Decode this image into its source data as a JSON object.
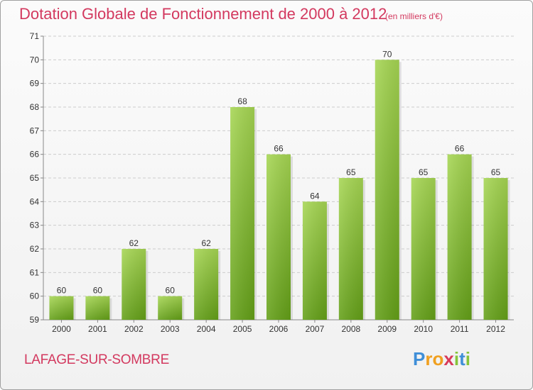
{
  "header": {
    "title": "Dotation Globale de Fonctionnement de 2000 à 2012",
    "subtitle": "(en milliers d'€)"
  },
  "footer": {
    "commune": "LAFAGE-SUR-SOMBRE",
    "logo_text": "Proxiti"
  },
  "colors": {
    "title": "#d3395f",
    "bar_top": "#a6d653",
    "bar_bottom": "#64a018",
    "grid": "#cccccc",
    "logo_p": "#3f8fd8",
    "logo_r": "#f0a020",
    "logo_o": "#f0a020",
    "logo_x": "#d83a5a",
    "logo_i": "#86c43a",
    "logo_t": "#3f8fd8"
  },
  "chart_data": {
    "type": "bar",
    "title": "Dotation Globale de Fonctionnement de 2000 à 2012",
    "subtitle": "(en milliers d'€)",
    "xlabel": "",
    "ylabel": "",
    "categories": [
      "2000",
      "2001",
      "2002",
      "2003",
      "2004",
      "2005",
      "2006",
      "2007",
      "2008",
      "2009",
      "2010",
      "2011",
      "2012"
    ],
    "values": [
      60,
      60,
      62,
      60,
      62,
      68,
      66,
      64,
      65,
      70,
      65,
      66,
      65
    ],
    "data_labels": [
      "60",
      "60",
      "62",
      "60",
      "62",
      "68",
      "66",
      "64",
      "65",
      "70",
      "65",
      "66",
      "65"
    ],
    "ylim": [
      59,
      71
    ],
    "yticks": [
      "59",
      "60",
      "61",
      "62",
      "63",
      "64",
      "65",
      "66",
      "67",
      "68",
      "69",
      "70",
      "71"
    ],
    "grid": "horizontal dashed"
  }
}
